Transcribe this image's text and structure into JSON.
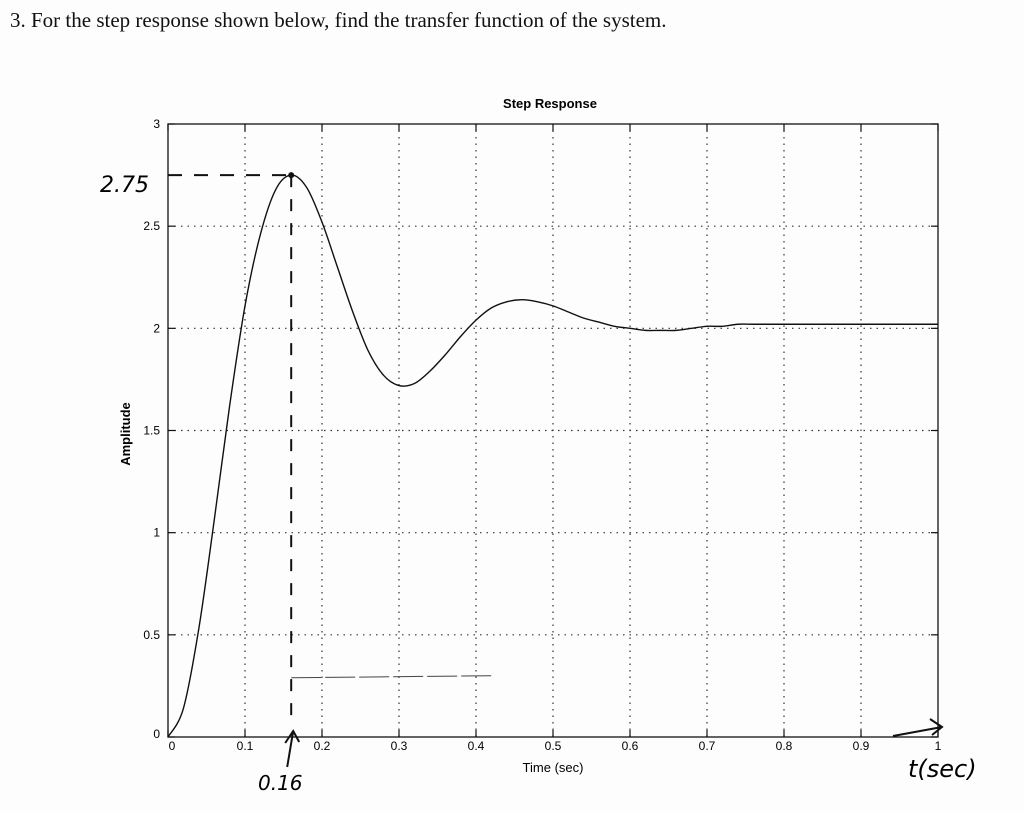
{
  "question": "3. For the step response shown below, find the transfer function of the system.",
  "chart_data": {
    "type": "line",
    "title": "Step Response",
    "xlabel": "Time (sec)",
    "ylabel": "Amplitude",
    "xlim": [
      0,
      1
    ],
    "ylim": [
      0,
      3
    ],
    "grid": true,
    "x_ticks": [
      0,
      0.1,
      0.2,
      0.3,
      0.4,
      0.5,
      0.6,
      0.7,
      0.8,
      0.9,
      1
    ],
    "x_tick_labels": [
      "0",
      "0.1",
      "0.2",
      "0.3",
      "0.4",
      "0.5",
      "0.6",
      "0.7",
      "0.8",
      "0.9",
      "1"
    ],
    "y_ticks": [
      0,
      0.5,
      1,
      1.5,
      2,
      2.5,
      3
    ],
    "y_tick_labels": [
      "0",
      "0.5",
      "1",
      "1.5",
      "2",
      "2.5",
      "3"
    ],
    "series": [
      {
        "x": [
          0,
          0.02,
          0.04,
          0.06,
          0.08,
          0.1,
          0.12,
          0.14,
          0.16,
          0.18,
          0.2,
          0.22,
          0.24,
          0.26,
          0.28,
          0.3,
          0.32,
          0.34,
          0.36,
          0.38,
          0.4,
          0.42,
          0.44,
          0.46,
          0.48,
          0.5,
          0.52,
          0.54,
          0.56,
          0.58,
          0.6,
          0.62,
          0.64,
          0.66,
          0.68,
          0.7,
          0.72,
          0.74,
          0.76,
          0.78,
          0.8,
          0.82,
          0.84,
          0.86,
          0.88,
          0.9,
          0.92,
          0.94,
          0.96,
          0.98,
          1.0
        ],
        "values": [
          0,
          0.14,
          0.53,
          1.06,
          1.62,
          2.11,
          2.46,
          2.68,
          2.75,
          2.69,
          2.52,
          2.3,
          2.08,
          1.89,
          1.77,
          1.72,
          1.73,
          1.79,
          1.87,
          1.96,
          2.04,
          2.1,
          2.13,
          2.14,
          2.13,
          2.11,
          2.08,
          2.05,
          2.03,
          2.01,
          2.0,
          1.99,
          1.99,
          1.99,
          2.0,
          2.01,
          2.01,
          2.02,
          2.02,
          2.02,
          2.02,
          2.02,
          2.02,
          2.02,
          2.02,
          2.02,
          2.02,
          2.02,
          2.02,
          2.02,
          2.02
        ]
      }
    ],
    "annotations": {
      "peak_value_label": "2.75",
      "peak_value": 2.75,
      "peak_time_label": "0.16",
      "peak_time": 0.16,
      "time_axis_label": "t(sec)"
    }
  }
}
